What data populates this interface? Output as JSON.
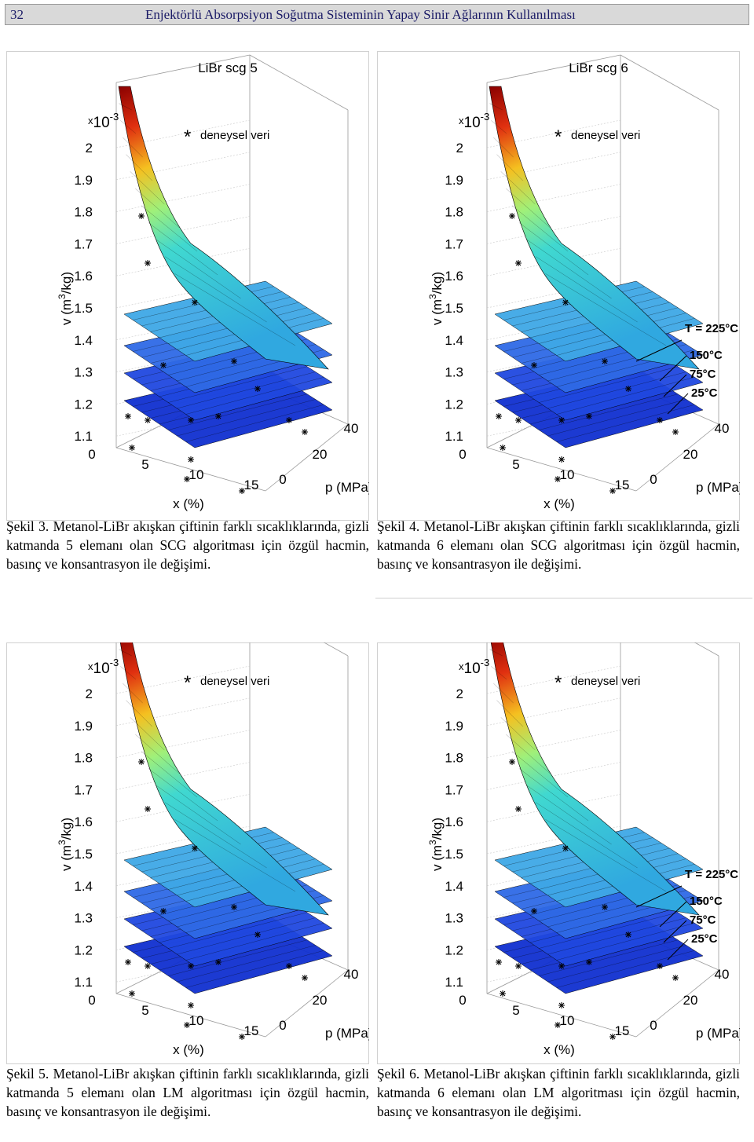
{
  "header": {
    "page_number": "32",
    "title": "Enjektörlü Absorpsiyon Soğutma Sisteminin Yapay Sinir Ağlarının Kullanılması"
  },
  "figures": [
    {
      "title": "LiBr scg 5",
      "scale": {
        "prefix": "x",
        "base": "10",
        "exponent": "-3"
      },
      "legend": {
        "marker": "*",
        "label": "deneysel veri"
      },
      "y_axis": {
        "label_prefix": "v (m",
        "label_sup": "3",
        "label_suffix": "/kg)",
        "ticks": [
          "2",
          "1.9",
          "1.8",
          "1.7",
          "1.6",
          "1.5",
          "1.4",
          "1.3",
          "1.2",
          "1.1"
        ]
      },
      "x_axis": {
        "label": "x (%)",
        "ticks": [
          "0",
          "5",
          "10",
          "15"
        ]
      },
      "p_axis": {
        "label": "p (MPa)",
        "ticks": [
          "0",
          "20",
          "40"
        ]
      },
      "caption": {
        "label": "Şekil 3.",
        "text": "Metanol-LiBr akışkan çiftinin farklı sıcaklıklarında, gizli katmanda 5 elemanı olan SCG algoritması için özgül hacmin, basınç ve konsantrasyon ile değişimi."
      }
    },
    {
      "title": "LiBr scg 6",
      "scale": {
        "prefix": "x",
        "base": "10",
        "exponent": "-3"
      },
      "legend": {
        "marker": "*",
        "label": "deneysel veri"
      },
      "y_axis": {
        "label_prefix": "v (m",
        "label_sup": "3",
        "label_suffix": "/kg)",
        "ticks": [
          "2",
          "1.9",
          "1.8",
          "1.7",
          "1.6",
          "1.5",
          "1.4",
          "1.3",
          "1.2",
          "1.1"
        ]
      },
      "x_axis": {
        "label": "x (%)",
        "ticks": [
          "0",
          "5",
          "10",
          "15"
        ]
      },
      "p_axis": {
        "label": "p (MPa)",
        "ticks": [
          "0",
          "20",
          "40"
        ]
      },
      "temperatures": [
        "T = 225°C",
        "150°C",
        "75°C",
        "25°C"
      ],
      "caption": {
        "label": "Şekil 4.",
        "text": "Metanol-LiBr akışkan çiftinin farklı sıcaklıklarında, gizli katmanda 6 elemanı olan SCG algoritması için özgül hacmin, basınç ve konsantrasyon ile değişimi."
      }
    },
    {
      "scale": {
        "prefix": "x",
        "base": "10",
        "exponent": "-3"
      },
      "legend": {
        "marker": "*",
        "label": "deneysel veri"
      },
      "y_axis": {
        "label_prefix": "v (m",
        "label_sup": "3",
        "label_suffix": "/kg)",
        "ticks": [
          "2",
          "1.9",
          "1.8",
          "1.7",
          "1.6",
          "1.5",
          "1.4",
          "1.3",
          "1.2",
          "1.1"
        ]
      },
      "x_axis": {
        "label": "x (%)",
        "ticks": [
          "0",
          "5",
          "10",
          "15"
        ]
      },
      "p_axis": {
        "label": "p (MPa)",
        "ticks": [
          "0",
          "20",
          "40"
        ]
      },
      "caption": {
        "label": "Şekil 5.",
        "text": "Metanol-LiBr akışkan çiftinin farklı sıcaklıklarında, gizli katmanda 5 elemanı olan LM algoritması için özgül hacmin, basınç ve konsantrasyon ile değişimi."
      }
    },
    {
      "scale": {
        "prefix": "x",
        "base": "10",
        "exponent": "-3"
      },
      "legend": {
        "marker": "*",
        "label": "deneysel veri"
      },
      "y_axis": {
        "label_prefix": "v (m",
        "label_sup": "3",
        "label_suffix": "/kg)",
        "ticks": [
          "2",
          "1.9",
          "1.8",
          "1.7",
          "1.6",
          "1.5",
          "1.4",
          "1.3",
          "1.2",
          "1.1"
        ]
      },
      "x_axis": {
        "label": "x (%)",
        "ticks": [
          "0",
          "5",
          "10",
          "15"
        ]
      },
      "p_axis": {
        "label": "p (MPa)",
        "ticks": [
          "0",
          "20",
          "40"
        ]
      },
      "temperatures": [
        "T = 225°C",
        "150°C",
        "75°C",
        "25°C"
      ],
      "caption": {
        "label": "Şekil 6.",
        "text": "Metanol-LiBr akışkan çiftinin farklı sıcaklıklarında, gizli katmanda 6 elemanı olan LM algoritması için özgül hacmin, basınç ve konsantrasyon ile değişimi."
      }
    }
  ]
}
